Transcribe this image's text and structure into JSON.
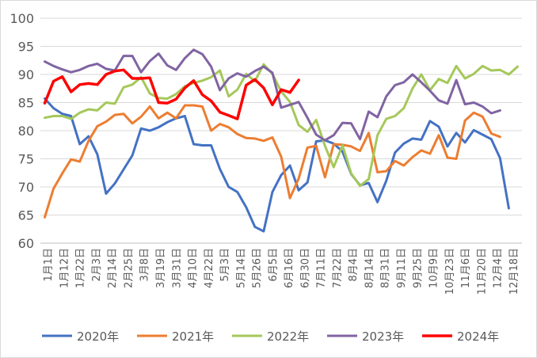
{
  "chart_data": {
    "type": "line",
    "title": "",
    "xlabel": "",
    "ylabel": "",
    "ylim": [
      60,
      100
    ],
    "yticks": [
      60,
      65,
      70,
      75,
      80,
      85,
      90,
      95,
      100
    ],
    "grid": true,
    "legend_position": "bottom",
    "x_tick_labels": [
      "1月1日",
      "1月12日",
      "1月22日",
      "2月3日",
      "2月14日",
      "2月25日",
      "3月8日",
      "3月19日",
      "3月31日",
      "4月10日",
      "4月22日",
      "5月3日",
      "5月14日",
      "5月26日",
      "6月5日",
      "6月16日",
      "6月30日",
      "7月11日",
      "7月22日",
      "8月4日",
      "8月14日",
      "8月31日",
      "9月11日",
      "9月25日",
      "10月9日",
      "10月23日",
      "11月6日",
      "11月20日",
      "12月4日",
      "12月18日"
    ],
    "series": [
      {
        "name": "2020年",
        "color": "#4472C4",
        "values": [
          85.7,
          84,
          83,
          82.6,
          77.6,
          79,
          75.8,
          68.8,
          70.6,
          73.1,
          75.6,
          80.4,
          80,
          80.6,
          81.5,
          82.2,
          82.6,
          77.6,
          77.4,
          77.4,
          73.2,
          70,
          69.1,
          66.4,
          62.9,
          62.1,
          69.1,
          72.1,
          73.8,
          69.4,
          70.8,
          78.1,
          78.3,
          77.7,
          76.3,
          72.3,
          70.3,
          70.7,
          67.3,
          71.1,
          76.1,
          77.7,
          78.6,
          78.4,
          81.7,
          80.7,
          77.2,
          79.6,
          77.9,
          80.1,
          79.3,
          78.5,
          75.1,
          66.2
        ]
      },
      {
        "name": "2021年",
        "color": "#ED7D31",
        "values": [
          64.6,
          69.7,
          72.4,
          74.9,
          74.5,
          78.2,
          80.8,
          81.6,
          82.8,
          83,
          81.3,
          82.5,
          84.3,
          82.2,
          83.2,
          82.2,
          84.5,
          84.5,
          84.3,
          80,
          81.2,
          80.6,
          79.4,
          78.7,
          78.6,
          78.2,
          78.8,
          75.4,
          68,
          71.5,
          77,
          77.3,
          71.7,
          77.6,
          77.5,
          77.2,
          76.4,
          79.6,
          72.6,
          72.8,
          74.6,
          73.8,
          75.3,
          76.5,
          75.9,
          79.2,
          75.2,
          75,
          81.8,
          83.2,
          82.5,
          79.5,
          78.9
        ]
      },
      {
        "name": "2022年",
        "color": "#A5C85A",
        "values": [
          82.3,
          82.6,
          82.6,
          82.1,
          83.2,
          83.8,
          83.6,
          85,
          84.8,
          87.7,
          88.2,
          89.5,
          86.6,
          85.8,
          85.7,
          86.5,
          87.9,
          88.5,
          88.9,
          89.5,
          90.7,
          86.1,
          87.3,
          90.1,
          88.8,
          91.8,
          90.1,
          87,
          85.1,
          81,
          79.8,
          81.9,
          77.3,
          73.5,
          77.4,
          72.4,
          70.2,
          71.4,
          79.2,
          82.1,
          82.6,
          84,
          87.5,
          90,
          87.2,
          89.2,
          88.5,
          91.5,
          89.3,
          90.1,
          91.5,
          90.7,
          90.8,
          90,
          91.4
        ]
      },
      {
        "name": "2023年",
        "color": "#8064A2",
        "values": [
          92.3,
          91.5,
          90.9,
          90.4,
          90.8,
          91.5,
          91.9,
          91,
          90.7,
          93.3,
          93.3,
          90.4,
          92.4,
          93.7,
          91.6,
          90.8,
          92.9,
          94.4,
          93.6,
          91.4,
          87.2,
          89.3,
          90.2,
          89.6,
          90.6,
          91.4,
          90.3,
          84.1,
          84.6,
          85.1,
          82.3,
          79.3,
          78.3,
          79.2,
          81.4,
          81.3,
          78.5,
          83.4,
          82.4,
          86.1,
          88.1,
          88.6,
          90,
          88.6,
          87.1,
          85.4,
          84.8,
          89,
          84.7,
          85,
          84.3,
          83.1,
          83.6
        ]
      },
      {
        "name": "2024年",
        "color": "#FF0000",
        "values": [
          84.9,
          88.8,
          89.6,
          86.9,
          88.2,
          88.4,
          88.2,
          90,
          90.6,
          90.8,
          89.3,
          89.3,
          89.4,
          85,
          84.9,
          85.6,
          87.6,
          88.9,
          86.4,
          85.3,
          83.3,
          82.7,
          82.1,
          88.1,
          89.1,
          87.6,
          84.6,
          87.3,
          86.8,
          89
        ]
      }
    ]
  }
}
